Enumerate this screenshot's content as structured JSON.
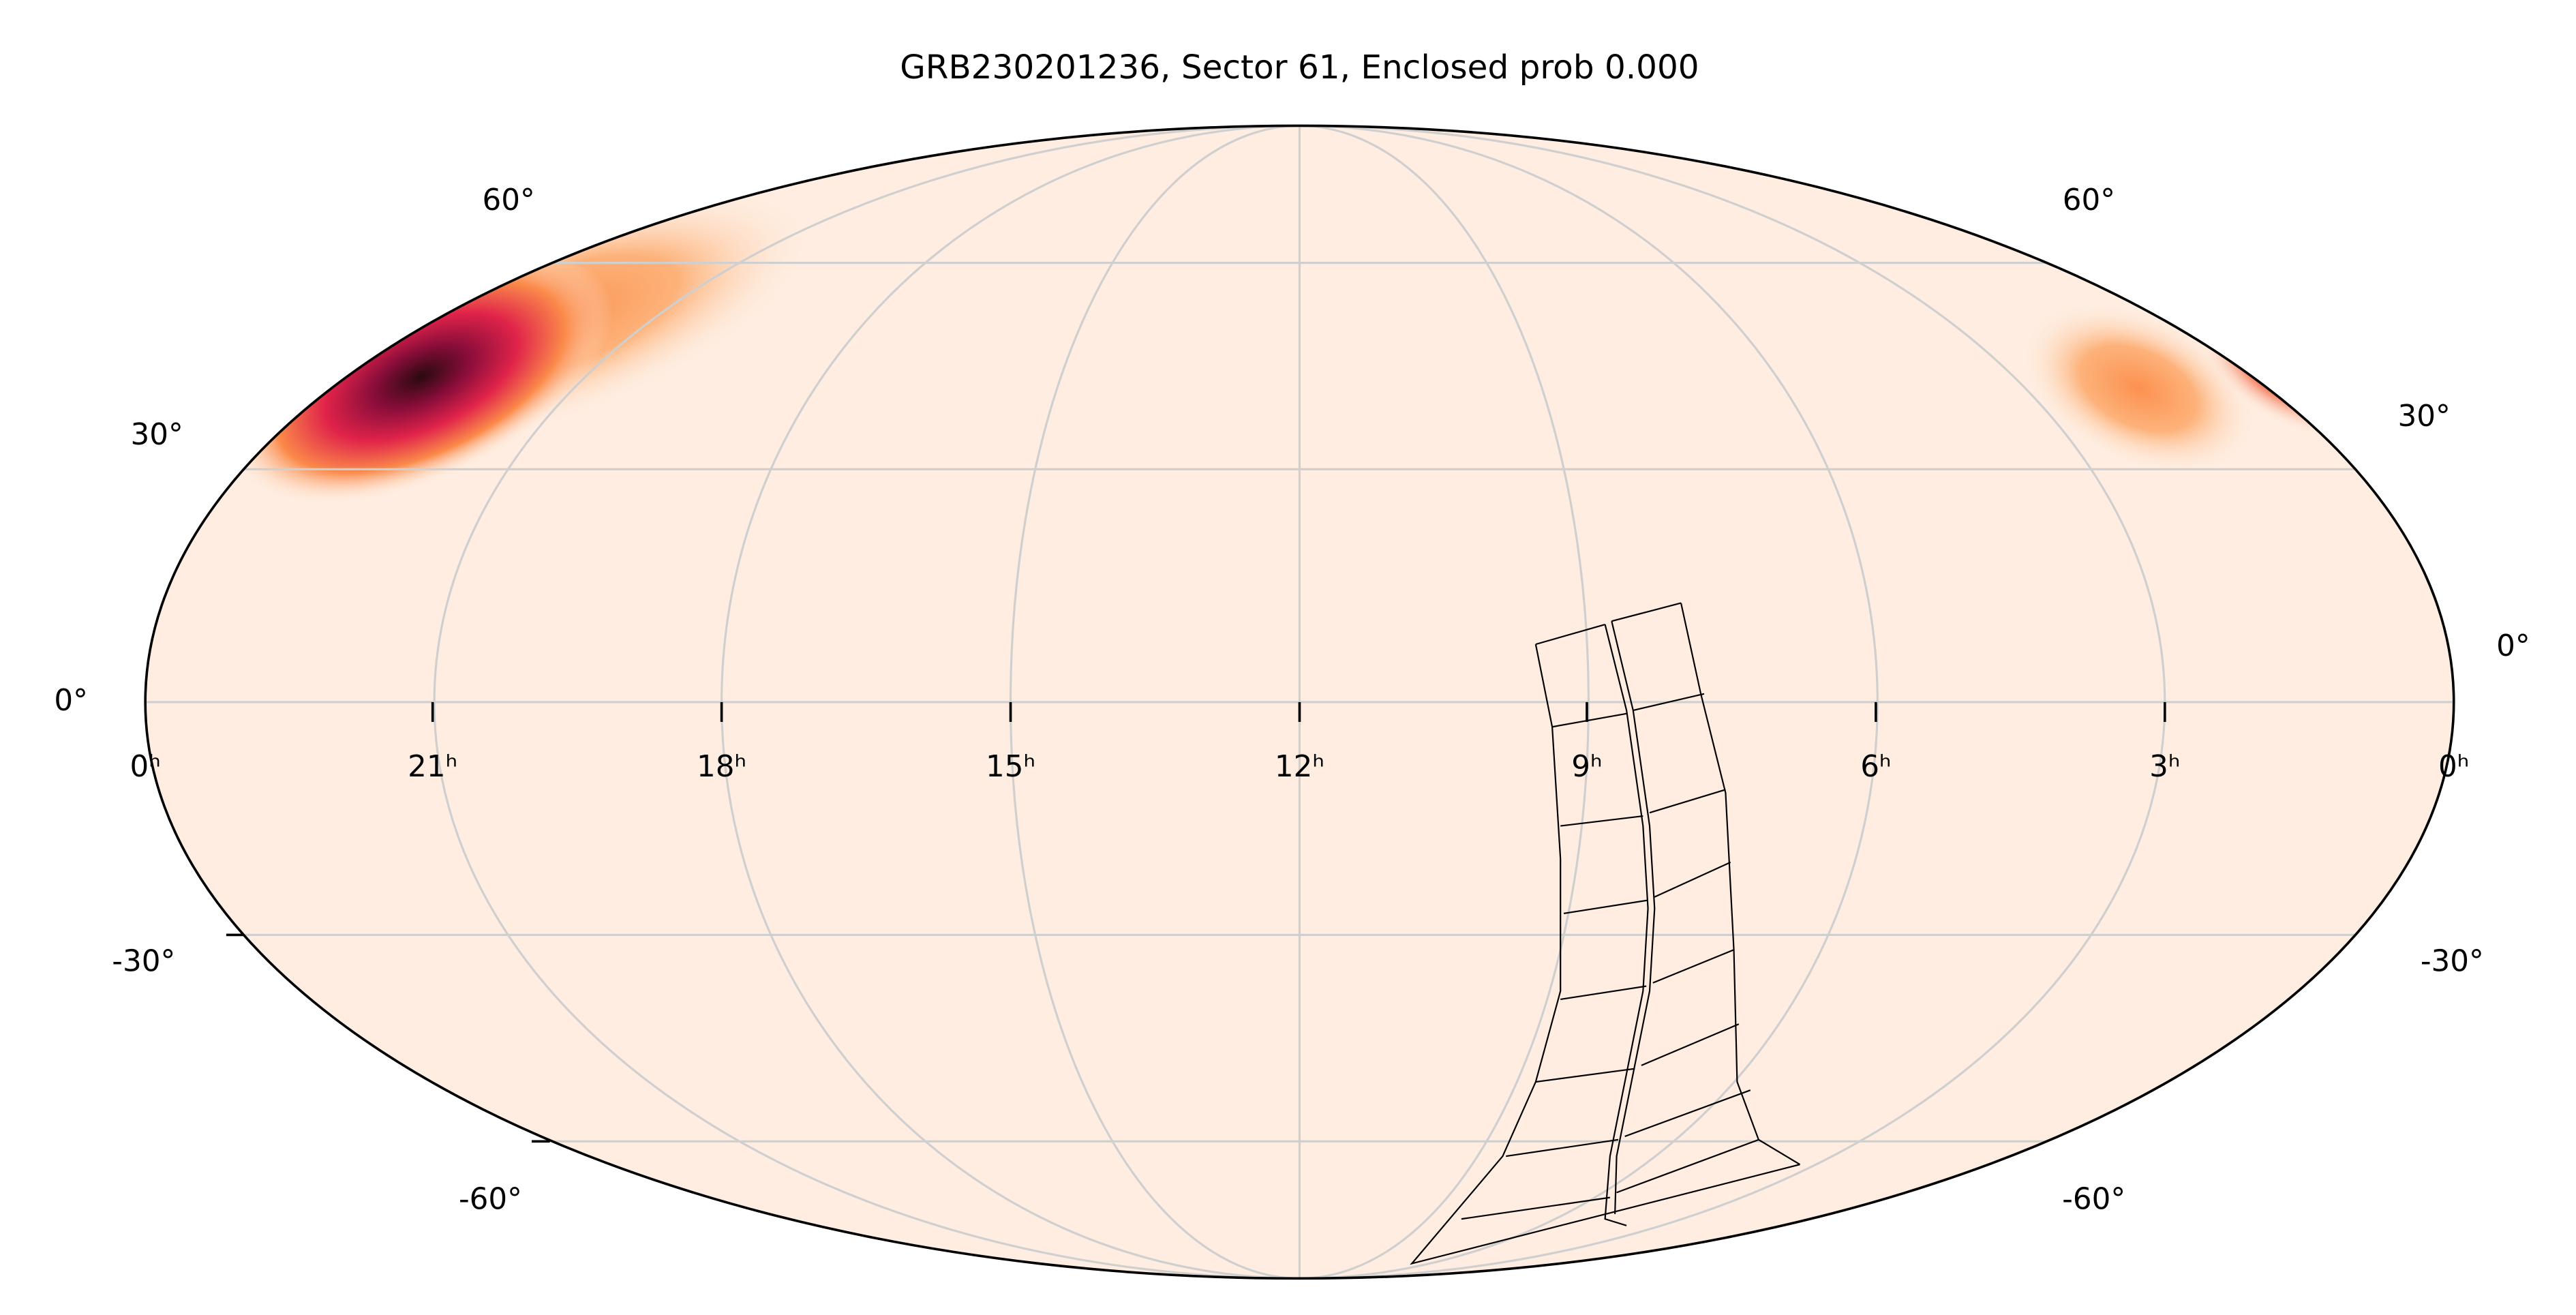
{
  "title": "GRB230201236, Sector 61, Enclosed prob 0.000",
  "ra_labels": [
    "0ʰ",
    "21ʰ",
    "18ʰ",
    "15ʰ",
    "12ʰ",
    "9ʰ",
    "6ʰ",
    "3ʰ",
    "0ʰ"
  ],
  "dec_labels_left": [
    "60°",
    "30°",
    "0°",
    "-30°",
    "-60°"
  ],
  "dec_labels_right": [
    "60°",
    "30°",
    "0°",
    "-30°",
    "-60°"
  ]
}
